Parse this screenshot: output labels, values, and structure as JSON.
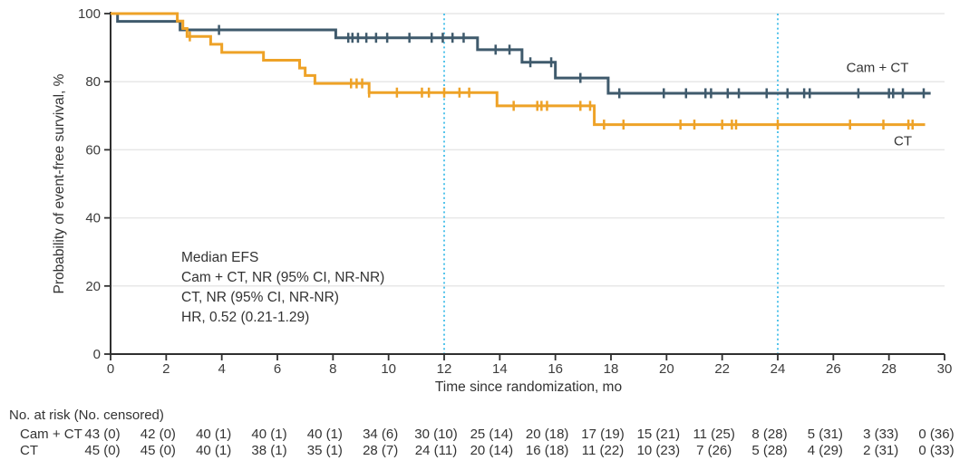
{
  "chart_data": {
    "type": "line",
    "subtype": "kaplan-meier-step",
    "title": "",
    "xlabel": "Time since randomization, mo",
    "ylabel": "Probability of event-free survival, %",
    "xlim": [
      0,
      30
    ],
    "ylim": [
      0,
      100
    ],
    "x_ticks": [
      0,
      2,
      4,
      6,
      8,
      10,
      12,
      14,
      16,
      18,
      20,
      22,
      24,
      26,
      28,
      30
    ],
    "y_ticks": [
      0,
      20,
      40,
      60,
      80,
      100
    ],
    "grid": "horizontal",
    "gridline_color": "#e7e7e7",
    "axis_color": "#2f2f2f",
    "tick_label_color": "#3c3c3c",
    "reference_lines": {
      "x": [
        12,
        24
      ],
      "color": "#53c4eb",
      "style": "dotted"
    },
    "series": [
      {
        "name": "Cam + CT",
        "color": "#3f5a6c",
        "steps": [
          [
            0,
            100
          ],
          [
            0.25,
            97.7
          ],
          [
            2.5,
            95.2
          ],
          [
            8.1,
            92.9
          ],
          [
            13.2,
            89.4
          ],
          [
            14.8,
            85.7
          ],
          [
            16.0,
            81.1
          ],
          [
            17.9,
            76.6
          ]
        ],
        "end_x": 29.5,
        "censors": [
          [
            3.9,
            95.2
          ],
          [
            8.55,
            92.9
          ],
          [
            8.7,
            92.9
          ],
          [
            8.9,
            92.9
          ],
          [
            9.2,
            92.9
          ],
          [
            9.55,
            92.9
          ],
          [
            9.95,
            92.9
          ],
          [
            10.75,
            92.9
          ],
          [
            11.55,
            92.9
          ],
          [
            11.95,
            92.9
          ],
          [
            12.3,
            92.9
          ],
          [
            12.7,
            92.9
          ],
          [
            13.85,
            89.4
          ],
          [
            14.35,
            89.4
          ],
          [
            15.1,
            85.7
          ],
          [
            15.85,
            85.7
          ],
          [
            16.9,
            81.1
          ],
          [
            18.3,
            76.6
          ],
          [
            19.9,
            76.6
          ],
          [
            20.7,
            76.6
          ],
          [
            21.4,
            76.6
          ],
          [
            21.6,
            76.6
          ],
          [
            22.2,
            76.6
          ],
          [
            22.6,
            76.6
          ],
          [
            23.6,
            76.6
          ],
          [
            24.35,
            76.6
          ],
          [
            24.95,
            76.6
          ],
          [
            25.15,
            76.6
          ],
          [
            26.9,
            76.6
          ],
          [
            28.0,
            76.6
          ],
          [
            28.15,
            76.6
          ],
          [
            28.5,
            76.6
          ],
          [
            29.25,
            76.6
          ]
        ]
      },
      {
        "name": "CT",
        "color": "#eea227",
        "steps": [
          [
            0,
            100
          ],
          [
            2.4,
            97.8
          ],
          [
            2.6,
            95.6
          ],
          [
            2.75,
            93.3
          ],
          [
            3.6,
            91.0
          ],
          [
            4.0,
            88.6
          ],
          [
            5.5,
            86.3
          ],
          [
            6.8,
            84.0
          ],
          [
            7.0,
            81.8
          ],
          [
            7.35,
            79.5
          ],
          [
            9.3,
            76.8
          ],
          [
            13.9,
            72.9
          ],
          [
            17.4,
            67.4
          ]
        ],
        "end_x": 29.3,
        "censors": [
          [
            2.85,
            93.3
          ],
          [
            8.65,
            79.5
          ],
          [
            8.85,
            79.5
          ],
          [
            9.05,
            79.5
          ],
          [
            9.3,
            76.8
          ],
          [
            10.3,
            76.8
          ],
          [
            11.2,
            76.8
          ],
          [
            11.45,
            76.8
          ],
          [
            12.0,
            76.8
          ],
          [
            12.55,
            76.8
          ],
          [
            12.9,
            76.8
          ],
          [
            14.5,
            72.9
          ],
          [
            15.35,
            72.9
          ],
          [
            15.5,
            72.9
          ],
          [
            15.7,
            72.9
          ],
          [
            16.9,
            72.9
          ],
          [
            17.25,
            72.9
          ],
          [
            17.75,
            67.4
          ],
          [
            18.45,
            67.4
          ],
          [
            20.5,
            67.4
          ],
          [
            21.0,
            67.4
          ],
          [
            22.0,
            67.4
          ],
          [
            22.35,
            67.4
          ],
          [
            22.5,
            67.4
          ],
          [
            24.0,
            67.4
          ],
          [
            26.6,
            67.4
          ],
          [
            27.8,
            67.4
          ],
          [
            28.7,
            67.4
          ],
          [
            28.85,
            67.4
          ]
        ]
      }
    ],
    "annotation": {
      "lines": [
        "Median EFS",
        "Cam + CT, NR (95% CI, NR-NR)",
        "CT, NR (95% CI, NR-NR)",
        "HR, 0.52 (0.21-1.29)"
      ]
    }
  },
  "risk_table": {
    "header": "No. at risk (No. censored)",
    "time_points": [
      0,
      2,
      4,
      6,
      8,
      10,
      12,
      14,
      16,
      18,
      20,
      22,
      24,
      26,
      28,
      30
    ],
    "rows": [
      {
        "label": "Cam + CT",
        "values": [
          "43 (0)",
          "42 (0)",
          "40 (1)",
          "40 (1)",
          "40 (1)",
          "34 (6)",
          "30 (10)",
          "25 (14)",
          "20 (18)",
          "17 (19)",
          "15 (21)",
          "11 (25)",
          "8 (28)",
          "5 (31)",
          "3 (33)",
          "0 (36)"
        ]
      },
      {
        "label": "CT",
        "values": [
          "45 (0)",
          "45 (0)",
          "40 (1)",
          "38 (1)",
          "35 (1)",
          "28 (7)",
          "24 (11)",
          "20 (14)",
          "16 (18)",
          "11 (22)",
          "10 (23)",
          "7 (26)",
          "5 (28)",
          "4 (29)",
          "2 (31)",
          "0 (33)"
        ]
      }
    ]
  }
}
